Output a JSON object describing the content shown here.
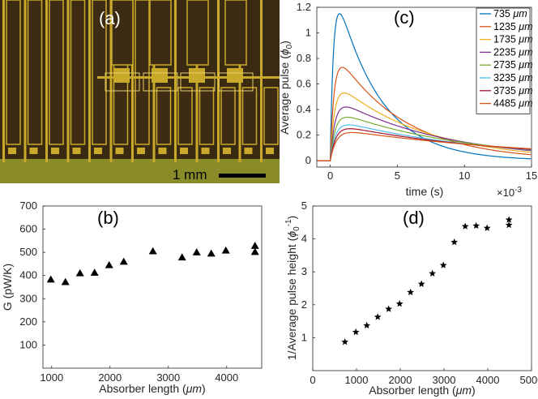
{
  "panel_a": {
    "label": "(a)",
    "scalebar_label": "1 mm",
    "colors": {
      "gold": "#c9a92a",
      "dark": "#3e2b14",
      "green": "#8a8c2a"
    }
  },
  "chart_data": [
    {
      "id": "c",
      "panel_label": "(c)",
      "type": "line",
      "xlabel": "time (s)",
      "x_exponent": "×10",
      "x_exponent_power": "-3",
      "ylabel": "Average pulse (",
      "ylabel_symbol": "ϕ",
      "ylabel_sub": "0",
      "ylabel_close": ")",
      "xlim": [
        -1,
        15
      ],
      "ylim": [
        -0.05,
        1.2
      ],
      "xticks": [
        0,
        5,
        10,
        15
      ],
      "yticks": [
        0,
        0.2,
        0.4,
        0.6,
        0.8,
        1,
        1.2
      ],
      "xtick_labels": [
        "0",
        "5",
        "10",
        "15"
      ],
      "ytick_labels": [
        "0",
        "0.2",
        "0.4",
        "0.6",
        "0.8",
        "1",
        "1.2"
      ],
      "x_unit": "ms",
      "legend_position": "top-right",
      "series": [
        {
          "name": "735",
          "unit": "μm",
          "peak": 1.15,
          "rise": 0.25,
          "fall": 3.2,
          "color": "#0072bd"
        },
        {
          "name": "1235",
          "unit": "μm",
          "peak": 0.73,
          "rise": 0.3,
          "fall": 5.0,
          "color": "#d95319"
        },
        {
          "name": "1735",
          "unit": "μm",
          "peak": 0.53,
          "rise": 0.33,
          "fall": 6.5,
          "color": "#edb120"
        },
        {
          "name": "2235",
          "unit": "μm",
          "peak": 0.42,
          "rise": 0.36,
          "fall": 8.0,
          "color": "#7e2f8e"
        },
        {
          "name": "2735",
          "unit": "μm",
          "peak": 0.34,
          "rise": 0.38,
          "fall": 9.5,
          "color": "#77ac30"
        },
        {
          "name": "3235",
          "unit": "μm",
          "peak": 0.28,
          "rise": 0.4,
          "fall": 11.0,
          "color": "#4dbeee"
        },
        {
          "name": "3735",
          "unit": "μm",
          "peak": 0.25,
          "rise": 0.42,
          "fall": 12.5,
          "color": "#a2142f"
        },
        {
          "name": "4485",
          "unit": "μm",
          "peak": 0.22,
          "rise": 0.45,
          "fall": 15.0,
          "color": "#d95319"
        }
      ]
    },
    {
      "id": "b",
      "panel_label": "(b)",
      "type": "scatter",
      "marker": "triangle",
      "xlabel": "Absorber length (",
      "xlabel_unit": "μm",
      "xlabel_close": ")",
      "ylabel": "G (pW/K)",
      "xlim": [
        850,
        4600
      ],
      "ylim": [
        0,
        700
      ],
      "xticks": [
        1000,
        2000,
        3000,
        4000
      ],
      "yticks": [
        100,
        200,
        300,
        400,
        500,
        600,
        700
      ],
      "xtick_labels": [
        "1000",
        "2000",
        "3000",
        "4000"
      ],
      "ytick_labels": [
        "100",
        "200",
        "300",
        "400",
        "500",
        "600",
        "700"
      ],
      "x": [
        985,
        1235,
        1485,
        1735,
        1985,
        2235,
        2735,
        3235,
        3485,
        3735,
        3985,
        4485,
        4485
      ],
      "y": [
        383,
        372,
        410,
        412,
        445,
        460,
        505,
        478,
        500,
        495,
        508,
        528,
        502
      ]
    },
    {
      "id": "d",
      "panel_label": "(d)",
      "type": "scatter",
      "marker": "star",
      "xlabel": "Absorber length (",
      "xlabel_unit": "μm",
      "xlabel_close": ")",
      "ylabel": "1/Average pulse height (",
      "ylabel_symbol": "ϕ",
      "ylabel_sub": "0",
      "ylabel_sup": "-1",
      "ylabel_close": ")",
      "xlim": [
        0,
        5000
      ],
      "ylim": [
        0,
        5
      ],
      "xticks": [
        0,
        1000,
        2000,
        3000,
        4000,
        5000
      ],
      "yticks": [
        1,
        2,
        3,
        4,
        5
      ],
      "xtick_labels": [
        "0",
        "1000",
        "2000",
        "3000",
        "4000",
        "5000"
      ],
      "ytick_labels": [
        "1",
        "2",
        "3",
        "4",
        "5"
      ],
      "x": [
        735,
        985,
        1235,
        1485,
        1735,
        1985,
        2235,
        2485,
        2735,
        2985,
        3235,
        3485,
        3735,
        3985,
        4485,
        4485
      ],
      "y": [
        0.87,
        1.17,
        1.37,
        1.63,
        1.87,
        2.03,
        2.38,
        2.63,
        2.95,
        3.2,
        3.9,
        4.38,
        4.4,
        4.33,
        4.42,
        4.58
      ]
    }
  ]
}
